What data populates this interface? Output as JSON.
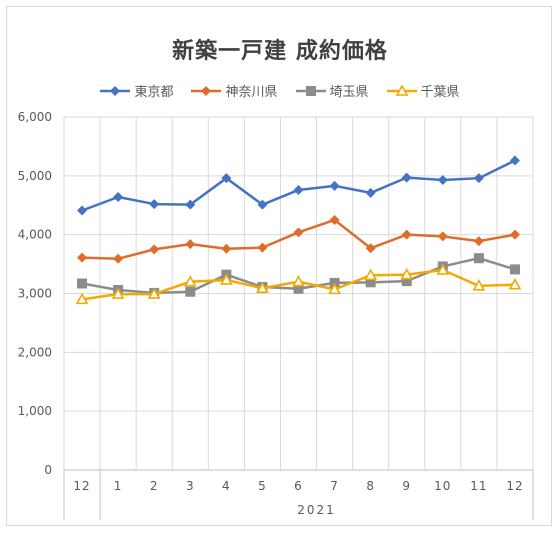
{
  "chart_data": {
    "type": "line",
    "title": "新築一戸建 成約価格",
    "categories": [
      "12",
      "1",
      "2",
      "3",
      "4",
      "5",
      "6",
      "7",
      "8",
      "9",
      "10",
      "11",
      "12"
    ],
    "year_group": {
      "label": "2021",
      "from_index": 1
    },
    "ylim": [
      0,
      6000
    ],
    "yticks": [
      "0",
      "1,000",
      "2,000",
      "3,000",
      "4,000",
      "5,000",
      "6,000"
    ],
    "ytick_values": [
      0,
      1000,
      2000,
      3000,
      4000,
      5000,
      6000
    ],
    "grid": true,
    "legend": "top",
    "series": [
      {
        "name": "東京都",
        "color": "#4472c4",
        "marker": "diamond",
        "values": [
          4410,
          4640,
          4520,
          4510,
          4960,
          4510,
          4760,
          4830,
          4710,
          4970,
          4930,
          4960,
          5260
        ]
      },
      {
        "name": "神奈川県",
        "color": "#e06c2a",
        "marker": "diamond",
        "values": [
          3610,
          3590,
          3750,
          3840,
          3760,
          3780,
          4040,
          4250,
          3770,
          4000,
          3970,
          3890,
          4000
        ]
      },
      {
        "name": "埼玉県",
        "color": "#8c8c8c",
        "marker": "square",
        "values": [
          3170,
          3060,
          3010,
          3030,
          3320,
          3110,
          3080,
          3180,
          3190,
          3210,
          3460,
          3600,
          3410
        ]
      },
      {
        "name": "千葉県",
        "color": "#f2a900",
        "marker": "triangle",
        "values": [
          2900,
          2990,
          2990,
          3200,
          3230,
          3090,
          3200,
          3070,
          3310,
          3320,
          3400,
          3130,
          3150
        ]
      }
    ]
  }
}
